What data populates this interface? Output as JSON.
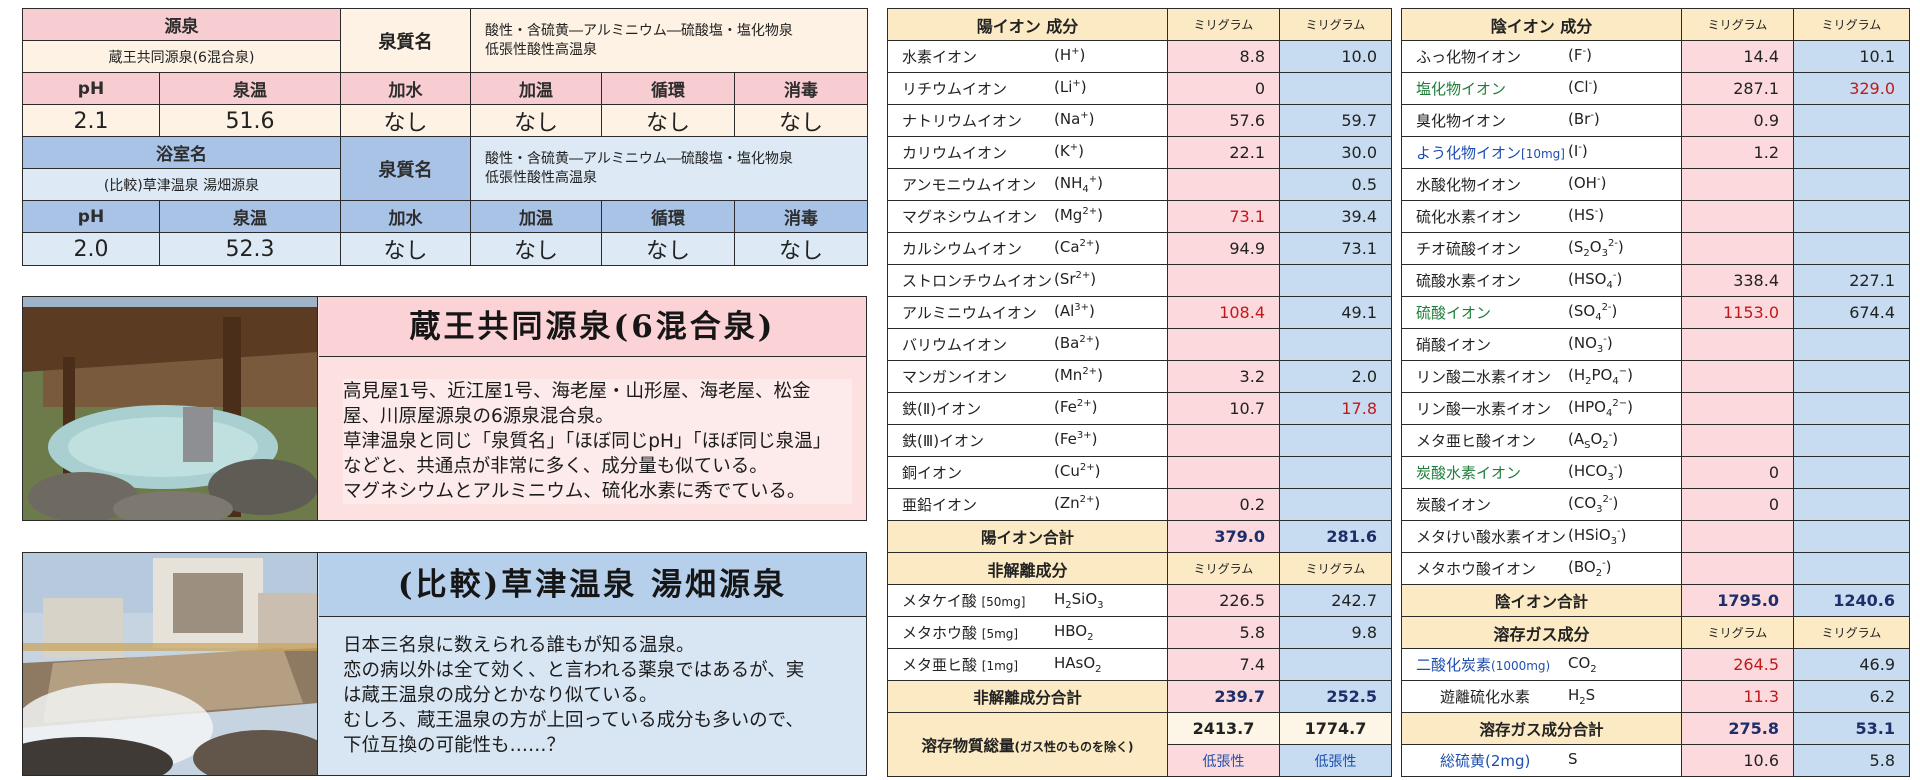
{
  "source_a": {
    "label_source": "源泉",
    "source_name": "蔵王共同源泉(6混合泉)",
    "quality_label": "泉質名",
    "quality_line1": "酸性・含硫黄―アルミニウム―硫酸塩・塩化物泉",
    "quality_line2": "低張性酸性高温泉",
    "headers": [
      "pH",
      "泉温",
      "加水",
      "加温",
      "循環",
      "消毒"
    ],
    "values": [
      "2.1",
      "51.6",
      "なし",
      "なし",
      "なし",
      "なし"
    ]
  },
  "source_b": {
    "label_source": "浴室名",
    "source_name": "(比較)草津温泉 湯畑源泉",
    "quality_label": "泉質名",
    "quality_line1": "酸性・含硫黄―アルミニウム―硫酸塩・塩化物泉",
    "quality_line2": "低張性酸性高温泉",
    "headers": [
      "pH",
      "泉温",
      "加水",
      "加温",
      "循環",
      "消毒"
    ],
    "values": [
      "2.0",
      "52.3",
      "なし",
      "なし",
      "なし",
      "なし"
    ]
  },
  "card_zao": {
    "title": "蔵王共同源泉(6混合泉)",
    "lines": [
      "高見屋1号、近江屋1号、海老屋・山形屋、海老屋、松金",
      "屋、川原屋源泉の6源泉混合泉。",
      "草津温泉と同じ「泉質名」「ほぼ同じpH」「ほぼ同じ泉温」",
      "などと、共通点が非常に多く、成分量も似ている。",
      "マグネシウムとアルミニウム、硫化水素に秀でている。"
    ]
  },
  "card_kusa": {
    "title": "(比較)草津温泉 湯畑源泉",
    "lines": [
      "日本三名泉に数えられる誰もが知る温泉。",
      "恋の病以外は全て効く、と言われる薬泉ではあるが、実",
      "は蔵王温泉の成分とかなり似ている。",
      "むしろ、蔵王温泉の方が上回っている成分も多いので、",
      "下位互換の可能性も……？"
    ]
  },
  "cation": {
    "header": "陽イオン 成分",
    "unit1": "ミリグラム",
    "unit2": "ミリグラム",
    "rows": [
      {
        "name": "水素イオン",
        "f": "H",
        "sup": "+",
        "a": "8.8",
        "b": "10.0"
      },
      {
        "name": "リチウムイオン",
        "f": "Li",
        "sup": "+",
        "a": "0",
        "b": ""
      },
      {
        "name": "ナトリウムイオン",
        "f": "Na",
        "sup": "+",
        "a": "57.6",
        "b": "59.7"
      },
      {
        "name": "カリウムイオン",
        "f": "K",
        "sup": "+",
        "a": "22.1",
        "b": "30.0"
      },
      {
        "name": "アンモニウムイオン",
        "f": "NH",
        "sub": "4",
        "sup": "+",
        "a": "",
        "b": "0.5"
      },
      {
        "name": "マグネシウムイオン",
        "f": "Mg",
        "sup": "2+",
        "a": "73.1",
        "b": "39.4",
        "ared": true
      },
      {
        "name": "カルシウムイオン",
        "f": "Ca",
        "sup": "2+",
        "a": "94.9",
        "b": "73.1"
      },
      {
        "name": "ストロンチウムイオン",
        "f": "Sr",
        "sup": "2+",
        "a": "",
        "b": ""
      },
      {
        "name": "アルミニウムイオン",
        "f": "Al",
        "sup": "3+",
        "a": "108.4",
        "b": "49.1",
        "ared": true
      },
      {
        "name": "バリウムイオン",
        "f": "Ba",
        "sup": "2+",
        "a": "",
        "b": ""
      },
      {
        "name": "マンガンイオン",
        "f": "Mn",
        "sup": "2+",
        "a": "3.2",
        "b": "2.0"
      },
      {
        "name": "鉄(Ⅱ)イオン",
        "f": "Fe",
        "sup": "2+",
        "a": "10.7",
        "b": "17.8",
        "bred": true
      },
      {
        "name": "鉄(Ⅲ)イオン",
        "f": "Fe",
        "sup": "3+",
        "a": "",
        "b": ""
      },
      {
        "name": "銅イオン",
        "f": "Cu",
        "sup": "2+",
        "a": "",
        "b": ""
      },
      {
        "name": "亜鉛イオン",
        "f": "Zn",
        "sup": "2+",
        "a": "0.2",
        "b": ""
      }
    ],
    "total_label": "陽イオン合計",
    "total_a": "379.0",
    "total_b": "281.6"
  },
  "nonionic": {
    "header": "非解離成分",
    "unit1": "ミリグラム",
    "unit2": "ミリグラム",
    "rows": [
      {
        "name": "メタケイ酸",
        "note": "[50mg]",
        "f": "H",
        "sub1": "2",
        "f2": "SiO",
        "sub2": "3",
        "a": "226.5",
        "b": "242.7"
      },
      {
        "name": "メタホウ酸",
        "note": "[5mg]",
        "f": "HBO",
        "sub1": "2",
        "f2": "",
        "sub2": "",
        "a": "5.8",
        "b": "9.8"
      },
      {
        "name": "メタ亜ヒ酸",
        "note": "[1mg]",
        "f": "HAsO",
        "sub1": "2",
        "f2": "",
        "sub2": "",
        "a": "7.4",
        "b": ""
      }
    ],
    "total_label": "非解離成分合計",
    "total_a": "239.7",
    "total_b": "252.5",
    "dissolved_label": "溶存物質総量",
    "dissolved_note": "(ガス性のものを除く)",
    "dissolved_a": "2413.7",
    "dissolved_b": "1774.7",
    "tonicity_a": "低張性",
    "tonicity_b": "低張性"
  },
  "anion": {
    "header": "陰イオン 成分",
    "unit1": "ミリグラム",
    "unit2": "ミリグラム",
    "rows": [
      {
        "name": "ふっ化物イオン",
        "f": "F",
        "sup": "-",
        "a": "14.4",
        "b": "10.1"
      },
      {
        "name": "塩化物イオン",
        "f": "Cl",
        "sup": "-",
        "a": "287.1",
        "b": "329.0",
        "green": true,
        "bred": true
      },
      {
        "name": "臭化物イオン",
        "f": "Br",
        "sup": "-",
        "a": "0.9",
        "b": ""
      },
      {
        "name": "よう化物イオン",
        "note": "[10mg]",
        "f": "I",
        "sup": "-",
        "a": "1.2",
        "b": "",
        "blue": true
      },
      {
        "name": "水酸化物イオン",
        "f": "OH",
        "sup": "-",
        "a": "",
        "b": ""
      },
      {
        "name": "硫化水素イオン",
        "f": "HS",
        "sup": "-",
        "a": "",
        "b": ""
      },
      {
        "name": "チオ硫酸イオン",
        "f": "S",
        "sub": "2",
        "f2": "O",
        "sub2": "3",
        "sup": "2-",
        "a": "",
        "b": ""
      },
      {
        "name": "硫酸水素イオン",
        "f": "HSO",
        "sub": "4",
        "sup": "-",
        "a": "338.4",
        "b": "227.1"
      },
      {
        "name": "硫酸イオン",
        "f": "SO",
        "sub": "4",
        "sup": "2-",
        "a": "1153.0",
        "b": "674.4",
        "green": true,
        "ared": true
      },
      {
        "name": "硝酸イオン",
        "f": "NO",
        "sub": "3",
        "sup": "-",
        "a": "",
        "b": ""
      },
      {
        "name": "リン酸二水素イオン",
        "f": "H",
        "sub": "2",
        "f2": "PO",
        "sub2": "4",
        "sup": "−",
        "a": "",
        "b": ""
      },
      {
        "name": "リン酸一水素イオン",
        "f": "HPO",
        "sub": "4",
        "sup": "2−",
        "a": "",
        "b": ""
      },
      {
        "name": "メタ亜ヒ酸イオン",
        "f": "A",
        "sub": "S",
        "f2": "O",
        "sub2": "2",
        "sup": "-",
        "a": "",
        "b": ""
      },
      {
        "name": "炭酸水素イオン",
        "f": "HCO",
        "sub": "3",
        "sup": "-",
        "a": "0",
        "b": "",
        "green": true
      },
      {
        "name": "炭酸イオン",
        "f": "CO",
        "sub": "3",
        "sup": "2-",
        "a": "0",
        "b": ""
      },
      {
        "name": "メタけい酸水素イオン",
        "f": "HSiO",
        "sub": "3",
        "sup": "-",
        "a": "",
        "b": ""
      },
      {
        "name": "メタホウ酸イオン",
        "f": "BO",
        "sub": "2",
        "sup": "-",
        "a": "",
        "b": ""
      }
    ],
    "total_label": "陰イオン合計",
    "total_a": "1795.0",
    "total_b": "1240.6"
  },
  "gas": {
    "header": "溶存ガス成分",
    "unit1": "ミリグラム",
    "unit2": "ミリグラム",
    "co2_name": "二酸化炭素",
    "co2_note": "(1000mg)",
    "co2_f": "CO",
    "co2_sub": "2",
    "co2_a": "264.5",
    "co2_b": "46.9",
    "h2s_name": "遊離硫化水素",
    "h2s_f": "H",
    "h2s_sub": "2",
    "h2s_f2": "S",
    "h2s_a": "11.3",
    "h2s_b": "6.2",
    "total_label": "溶存ガス成分合計",
    "total_a": "275.8",
    "total_b": "53.1",
    "sulfur_name": "総硫黄",
    "sulfur_note": "(2mg)",
    "sulfur_f": "S",
    "sulfur_a": "10.6",
    "sulfur_b": "5.8"
  },
  "colors": {
    "pink_header": "#f7cdd1",
    "blue_header": "#a8c3e6",
    "cream_header": "#fbeac4",
    "value_pink": "#fcd9dc",
    "value_blue": "#c7dcf1",
    "highlight_red": "#c1181c",
    "highlight_green": "#1f7e3a",
    "highlight_blue": "#1e4fb0"
  }
}
